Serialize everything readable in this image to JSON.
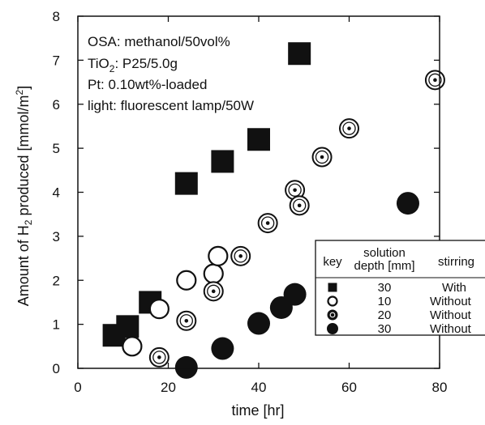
{
  "chart_data": {
    "type": "scatter",
    "xlabel": "time [hr]",
    "ylabel": "Amount of H2 produced [mmol/m2]",
    "ylabel_parts": {
      "pre": "Amount of H",
      "sub": "2",
      "mid": " produced [mmol/m",
      "sup": "2",
      "post": "]"
    },
    "xlim": [
      0,
      80
    ],
    "ylim": [
      0,
      8
    ],
    "x_ticks": [
      0,
      20,
      40,
      60,
      80
    ],
    "y_ticks": [
      0,
      1,
      2,
      3,
      4,
      5,
      6,
      7,
      8
    ],
    "grid": false,
    "legend_position": "lower-right",
    "annotations": {
      "line1": "OSA: methanol/50vol%",
      "line2": {
        "pre": "TiO",
        "sub": "2",
        "post": ": P25/5.0g"
      },
      "line3": "Pt: 0.10wt%-loaded",
      "line4": "light: fluorescent lamp/50W"
    },
    "legend": {
      "header_key": "key",
      "header_depth_line1": "solution",
      "header_depth_line2": "depth [mm]",
      "header_stirring": "stirring"
    },
    "series": [
      {
        "marker": "filled-square",
        "depth": "30",
        "stirring": "With",
        "points": [
          [
            8,
            0.75
          ],
          [
            11,
            0.95
          ],
          [
            16,
            1.5
          ],
          [
            24,
            4.2
          ],
          [
            32,
            4.7
          ],
          [
            40,
            5.2
          ],
          [
            49,
            7.15
          ]
        ]
      },
      {
        "marker": "open-circle",
        "depth": "10",
        "stirring": "Without",
        "points": [
          [
            12,
            0.5
          ],
          [
            18,
            1.35
          ],
          [
            24,
            2.0
          ],
          [
            30,
            2.15
          ],
          [
            31,
            2.55
          ]
        ]
      },
      {
        "marker": "dotted-circle",
        "depth": "20",
        "stirring": "Without",
        "points": [
          [
            18,
            0.25
          ],
          [
            24,
            1.08
          ],
          [
            30,
            1.75
          ],
          [
            36,
            2.55
          ],
          [
            42,
            3.3
          ],
          [
            48,
            4.05
          ],
          [
            49,
            3.7
          ],
          [
            54,
            4.8
          ],
          [
            60,
            5.45
          ],
          [
            79,
            6.55
          ]
        ]
      },
      {
        "marker": "filled-circle",
        "depth": "30",
        "stirring": "Without",
        "points": [
          [
            24,
            0.02
          ],
          [
            32,
            0.45
          ],
          [
            40,
            1.02
          ],
          [
            45,
            1.38
          ],
          [
            48,
            1.68
          ],
          [
            73,
            3.75
          ]
        ]
      }
    ]
  }
}
